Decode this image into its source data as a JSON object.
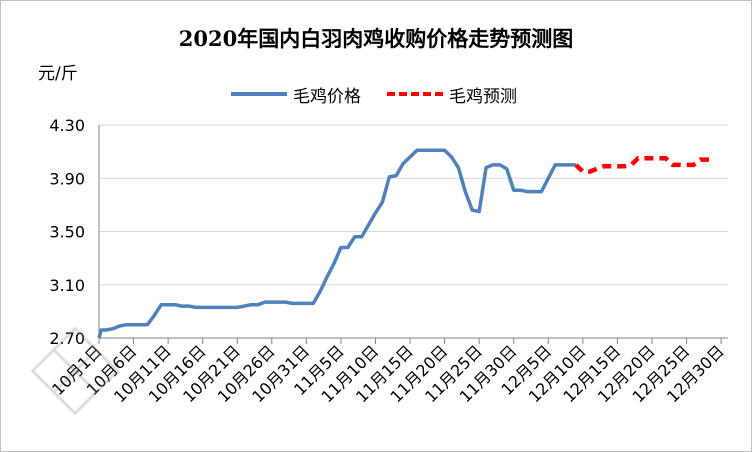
{
  "chart_data": {
    "type": "line",
    "title": "2020年国内白羽肉鸡收购价格走势预测图",
    "ylabel": "元/斤",
    "xlabel": "",
    "ylim": [
      2.7,
      4.3
    ],
    "yticks": [
      "2.70",
      "3.10",
      "3.50",
      "3.90",
      "4.30"
    ],
    "xticks": [
      "10月1日",
      "10月6日",
      "10月11日",
      "10月16日",
      "10月21日",
      "10月26日",
      "10月31日",
      "11月5日",
      "11月10日",
      "11月15日",
      "11月20日",
      "11月25日",
      "11月30日",
      "12月5日",
      "12月10日",
      "12月15日",
      "12月20日",
      "12月25日",
      "12月30日"
    ],
    "grid": true,
    "legend_position": "top",
    "series": [
      {
        "name": "毛鸡价格",
        "color": "#4f81bd",
        "style": "solid",
        "points": [
          [
            0,
            2.7
          ],
          [
            0.3,
            2.76
          ],
          [
            1,
            2.76
          ],
          [
            2,
            2.77
          ],
          [
            3,
            2.79
          ],
          [
            4,
            2.8
          ],
          [
            5,
            2.8
          ],
          [
            6,
            2.8
          ],
          [
            7,
            2.8
          ],
          [
            8,
            2.87
          ],
          [
            9,
            2.95
          ],
          [
            10,
            2.95
          ],
          [
            11,
            2.95
          ],
          [
            12,
            2.94
          ],
          [
            13,
            2.94
          ],
          [
            14,
            2.93
          ],
          [
            15,
            2.93
          ],
          [
            16,
            2.93
          ],
          [
            17,
            2.93
          ],
          [
            18,
            2.93
          ],
          [
            19,
            2.93
          ],
          [
            20,
            2.93
          ],
          [
            21,
            2.94
          ],
          [
            22,
            2.95
          ],
          [
            23,
            2.95
          ],
          [
            24,
            2.97
          ],
          [
            25,
            2.97
          ],
          [
            26,
            2.97
          ],
          [
            27,
            2.97
          ],
          [
            28,
            2.96
          ],
          [
            29,
            2.96
          ],
          [
            30,
            2.96
          ],
          [
            31,
            2.96
          ],
          [
            32,
            3.05
          ],
          [
            33,
            3.16
          ],
          [
            34,
            3.26
          ],
          [
            35,
            3.38
          ],
          [
            36,
            3.38
          ],
          [
            37,
            3.46
          ],
          [
            38,
            3.46
          ],
          [
            39,
            3.55
          ],
          [
            40,
            3.64
          ],
          [
            41,
            3.72
          ],
          [
            42,
            3.91
          ],
          [
            43,
            3.92
          ],
          [
            44,
            4.01
          ],
          [
            45,
            4.06
          ],
          [
            46,
            4.11
          ],
          [
            47,
            4.11
          ],
          [
            48,
            4.11
          ],
          [
            49,
            4.11
          ],
          [
            50,
            4.11
          ],
          [
            51,
            4.06
          ],
          [
            52,
            3.98
          ],
          [
            53,
            3.8
          ],
          [
            54,
            3.66
          ],
          [
            55,
            3.65
          ],
          [
            56,
            3.98
          ],
          [
            57,
            4.0
          ],
          [
            58,
            4.0
          ],
          [
            59,
            3.97
          ],
          [
            60,
            3.81
          ],
          [
            61,
            3.81
          ],
          [
            62,
            3.8
          ],
          [
            63,
            3.8
          ],
          [
            64,
            3.8
          ],
          [
            65,
            3.9
          ],
          [
            66,
            4.0
          ],
          [
            67,
            4.0
          ],
          [
            68,
            4.0
          ],
          [
            69,
            4.0
          ]
        ]
      },
      {
        "name": "毛鸡预测",
        "color": "#ff0000",
        "style": "dashed",
        "points": [
          [
            69,
            4.0
          ],
          [
            70,
            3.95
          ],
          [
            71,
            3.95
          ],
          [
            72,
            3.97
          ],
          [
            73,
            3.99
          ],
          [
            74,
            3.99
          ],
          [
            75,
            3.99
          ],
          [
            76,
            3.99
          ],
          [
            77,
            4.0
          ],
          [
            78,
            4.05
          ],
          [
            79,
            4.05
          ],
          [
            80,
            4.05
          ],
          [
            81,
            4.05
          ],
          [
            82,
            4.05
          ],
          [
            83,
            4.0
          ],
          [
            84,
            4.0
          ],
          [
            85,
            4.0
          ],
          [
            86,
            4.0
          ],
          [
            87,
            4.04
          ],
          [
            88,
            4.04
          ],
          [
            89,
            4.04
          ]
        ]
      }
    ]
  }
}
